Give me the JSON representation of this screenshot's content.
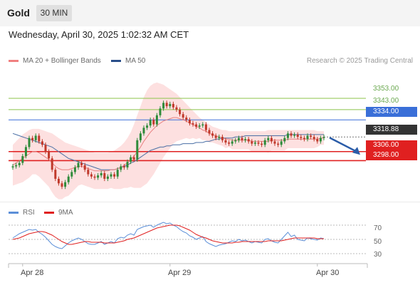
{
  "instrument": "Gold",
  "timeframe": "30 MIN",
  "datetime": "Wednesday, April 30, 2025 1:02:32 AM CET",
  "legend": {
    "ma20_bollinger": "MA 20 + Bollinger Bands",
    "ma50": "MA 50",
    "rsi": "RSI",
    "rsi_9ma": "9MA"
  },
  "credit": "Research © 2025 Trading Central",
  "colors": {
    "up_candle": "#2e8b3a",
    "down_candle": "#c0392b",
    "bollinger_band": "#fde0e0",
    "ma20": "#e88080",
    "ma50": "#4a6fa5",
    "resistance": "#8bc34a",
    "pivot": "#3a6fd8",
    "support": "#e02020",
    "current": "#333333",
    "rsi": "#5b8fd8",
    "rsi_ma": "#e02020",
    "arrow": "#2a5ca8"
  },
  "chart_data": {
    "type": "candlestick",
    "y_range": [
      3265,
      3380
    ],
    "levels": [
      {
        "label": "3353.00",
        "value": 3353.0,
        "kind": "resistance"
      },
      {
        "label": "3343.00",
        "value": 3343.0,
        "kind": "resistance"
      },
      {
        "label": "3334.00",
        "value": 3334.0,
        "kind": "pivot"
      },
      {
        "label": "3318.88",
        "value": 3318.88,
        "kind": "current"
      },
      {
        "label": "3306.00",
        "value": 3306.0,
        "kind": "support"
      },
      {
        "label": "3298.00",
        "value": 3298.0,
        "kind": "support"
      }
    ],
    "x_labels": [
      "Apr 28",
      "Apr 29",
      "Apr 30"
    ],
    "x_label_index": [
      3,
      48,
      93
    ],
    "close": [
      3293,
      3294,
      3296,
      3302,
      3310,
      3318,
      3316,
      3320,
      3315,
      3312,
      3306,
      3300,
      3290,
      3282,
      3278,
      3275,
      3279,
      3284,
      3288,
      3292,
      3296,
      3294,
      3290,
      3286,
      3284,
      3283,
      3285,
      3287,
      3282,
      3284,
      3286,
      3284,
      3290,
      3293,
      3292,
      3297,
      3301,
      3299,
      3316,
      3322,
      3327,
      3329,
      3334,
      3330,
      3338,
      3344,
      3349,
      3346,
      3348,
      3345,
      3343,
      3339,
      3336,
      3334,
      3331,
      3330,
      3328,
      3329,
      3330,
      3325,
      3322,
      3320,
      3318,
      3319,
      3316,
      3314,
      3313,
      3315,
      3316,
      3318,
      3316,
      3317,
      3315,
      3313,
      3314,
      3313,
      3312,
      3316,
      3318,
      3315,
      3313,
      3312,
      3315,
      3318,
      3322,
      3320,
      3321,
      3319,
      3318,
      3317,
      3320,
      3319,
      3317,
      3315,
      3318,
      3319
    ],
    "ma20": [
      3294,
      3296,
      3298,
      3300,
      3302,
      3304,
      3306,
      3306,
      3305,
      3303,
      3301,
      3299,
      3296,
      3293,
      3291,
      3290,
      3290,
      3290,
      3291,
      3292,
      3293,
      3293,
      3292,
      3291,
      3290,
      3289,
      3289,
      3289,
      3289,
      3289,
      3290,
      3290,
      3291,
      3292,
      3294,
      3296,
      3299,
      3302,
      3306,
      3310,
      3315,
      3319,
      3323,
      3326,
      3329,
      3331,
      3333,
      3334,
      3335,
      3336,
      3336,
      3335,
      3334,
      3333,
      3331,
      3330,
      3328,
      3327,
      3325,
      3324,
      3322,
      3321,
      3320,
      3319,
      3318,
      3317,
      3317,
      3316,
      3316,
      3316,
      3316,
      3316,
      3316,
      3315,
      3315,
      3315,
      3315,
      3315,
      3315,
      3316,
      3316,
      3316,
      3316,
      3316,
      3317,
      3317,
      3317,
      3317,
      3317,
      3317,
      3317,
      3317,
      3317,
      3317,
      3318,
      3318
    ],
    "bb_upper": [
      3312,
      3315,
      3318,
      3321,
      3323,
      3325,
      3326,
      3326,
      3326,
      3325,
      3324,
      3323,
      3322,
      3320,
      3318,
      3316,
      3314,
      3313,
      3312,
      3311,
      3310,
      3309,
      3308,
      3307,
      3306,
      3305,
      3305,
      3305,
      3305,
      3305,
      3306,
      3307,
      3309,
      3311,
      3314,
      3318,
      3323,
      3330,
      3338,
      3346,
      3354,
      3360,
      3364,
      3366,
      3367,
      3366,
      3365,
      3363,
      3361,
      3359,
      3357,
      3354,
      3351,
      3348,
      3345,
      3342,
      3339,
      3336,
      3334,
      3332,
      3330,
      3328,
      3327,
      3326,
      3325,
      3325,
      3324,
      3324,
      3324,
      3324,
      3324,
      3324,
      3324,
      3324,
      3324,
      3324,
      3324,
      3324,
      3325,
      3325,
      3325,
      3325,
      3325,
      3325,
      3325,
      3325,
      3325,
      3325,
      3325,
      3325,
      3325,
      3325,
      3325,
      3324,
      3324,
      3324
    ],
    "bb_lower": [
      3276,
      3277,
      3278,
      3279,
      3281,
      3283,
      3286,
      3286,
      3284,
      3281,
      3278,
      3275,
      3270,
      3266,
      3264,
      3264,
      3266,
      3267,
      3270,
      3273,
      3276,
      3277,
      3276,
      3275,
      3274,
      3273,
      3273,
      3273,
      3273,
      3273,
      3274,
      3273,
      3273,
      3273,
      3274,
      3274,
      3275,
      3274,
      3274,
      3274,
      3276,
      3278,
      3282,
      3286,
      3291,
      3296,
      3301,
      3305,
      3309,
      3313,
      3315,
      3316,
      3317,
      3318,
      3317,
      3318,
      3317,
      3318,
      3316,
      3316,
      3314,
      3314,
      3313,
      3312,
      3311,
      3309,
      3310,
      3308,
      3308,
      3308,
      3308,
      3308,
      3308,
      3306,
      3306,
      3306,
      3306,
      3306,
      3305,
      3307,
      3307,
      3307,
      3307,
      3307,
      3309,
      3309,
      3309,
      3309,
      3309,
      3309,
      3309,
      3309,
      3309,
      3310,
      3312,
      3312
    ],
    "ma50": [
      3322,
      3321,
      3320,
      3319,
      3318,
      3317,
      3316,
      3315,
      3314,
      3313,
      3312,
      3311,
      3310,
      3308,
      3306,
      3304,
      3302,
      3300,
      3299,
      3298,
      3297,
      3296,
      3295,
      3294,
      3293,
      3292,
      3291,
      3290,
      3290,
      3290,
      3290,
      3290,
      3291,
      3292,
      3293,
      3294,
      3296,
      3297,
      3299,
      3301,
      3303,
      3305,
      3307,
      3308,
      3309,
      3310,
      3310,
      3311,
      3311,
      3312,
      3312,
      3312,
      3313,
      3313,
      3313,
      3313,
      3314,
      3314,
      3314,
      3315,
      3315,
      3316,
      3317,
      3317,
      3318,
      3318,
      3318,
      3318,
      3319,
      3319,
      3319,
      3320,
      3320,
      3320,
      3320,
      3320,
      3320,
      3320,
      3320,
      3320,
      3320,
      3320,
      3320,
      3320,
      3321,
      3321,
      3321,
      3321,
      3321,
      3321,
      3321,
      3321,
      3321,
      3321,
      3321,
      3321
    ],
    "projection_target": 3300,
    "rsi": {
      "y_range": [
        20,
        80
      ],
      "ticks": [
        70,
        50,
        30
      ],
      "rsi": [
        52,
        55,
        58,
        60,
        62,
        64,
        63,
        64,
        60,
        57,
        53,
        48,
        43,
        40,
        38,
        37,
        41,
        45,
        48,
        50,
        52,
        50,
        47,
        44,
        43,
        43,
        45,
        47,
        43,
        45,
        47,
        45,
        51,
        53,
        52,
        56,
        58,
        56,
        64,
        66,
        68,
        69,
        70,
        67,
        70,
        72,
        74,
        72,
        73,
        70,
        68,
        64,
        61,
        59,
        55,
        53,
        50,
        52,
        54,
        47,
        44,
        42,
        40,
        42,
        43,
        44,
        46,
        48,
        47,
        50,
        48,
        49,
        47,
        45,
        47,
        46,
        45,
        50,
        51,
        48,
        46,
        45,
        50,
        55,
        60,
        54,
        56,
        50,
        49,
        48,
        52,
        51,
        50,
        49,
        52,
        51
      ],
      "ma": [
        50,
        51,
        52,
        54,
        56,
        58,
        59,
        60,
        61,
        61,
        60,
        58,
        56,
        53,
        50,
        47,
        45,
        43,
        43,
        44,
        45,
        46,
        47,
        47,
        46,
        46,
        46,
        46,
        45,
        45,
        45,
        45,
        46,
        47,
        48,
        50,
        51,
        52,
        54,
        56,
        58,
        60,
        62,
        64,
        66,
        67,
        68,
        69,
        70,
        70,
        70,
        69,
        67,
        65,
        63,
        60,
        57,
        55,
        53,
        52,
        50,
        48,
        47,
        46,
        45,
        45,
        45,
        45,
        46,
        46,
        47,
        47,
        47,
        47,
        47,
        47,
        47,
        47,
        48,
        48,
        48,
        48,
        48,
        49,
        50,
        51,
        52,
        52,
        52,
        52,
        52,
        52,
        52,
        51,
        51,
        51
      ]
    }
  }
}
